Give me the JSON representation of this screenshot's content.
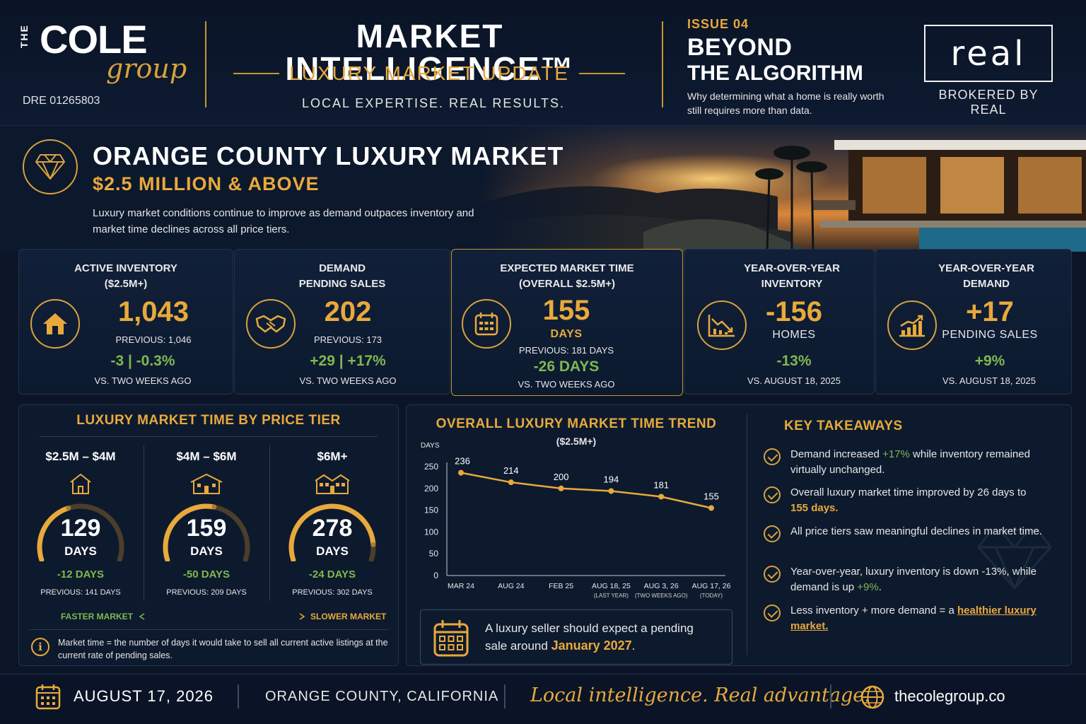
{
  "header": {
    "brand_the": "THE",
    "brand_cole": "COLE",
    "brand_group": "group",
    "dre": "DRE 01265803",
    "title": "MARKET INTELLIGENCE™",
    "subtitle": "LUXURY MARKET UPDATE",
    "tagline": "LOCAL EXPERTISE. REAL RESULTS.",
    "issue": "ISSUE 04",
    "headline_line1": "BEYOND",
    "headline_line2": "THE ALGORITHM",
    "headline_desc": "Why determining what a home is really worth still requires more than data.",
    "real_logo": "real",
    "brokered": "BROKERED BY REAL"
  },
  "hero": {
    "title": "ORANGE COUNTY LUXURY MARKET",
    "subtitle": "$2.5 MILLION & ABOVE",
    "description": "Luxury market conditions continue to improve as demand outpaces inventory and market time declines across all price tiers."
  },
  "cards": [
    {
      "title1": "ACTIVE INVENTORY",
      "title2": "($2.5M+)",
      "icon": "house-icon",
      "value": "1,043",
      "previous": "PREVIOUS: 1,046",
      "change": "-3  |  -0.3%",
      "compare": "VS. TWO WEEKS AGO"
    },
    {
      "title1": "DEMAND",
      "title2": "PENDING SALES",
      "icon": "handshake-icon",
      "value": "202",
      "previous": "PREVIOUS: 173",
      "change": "+29  |  +17%",
      "compare": "VS. TWO WEEKS AGO"
    },
    {
      "title1": "EXPECTED MARKET TIME",
      "title2": "(OVERALL $2.5M+)",
      "icon": "calendar-icon",
      "value": "155",
      "unit": "DAYS",
      "previous": "PREVIOUS: 181 DAYS",
      "change": "-26 DAYS",
      "compare": "VS. TWO WEEKS AGO"
    },
    {
      "title1": "YEAR-OVER-YEAR",
      "title2": "INVENTORY",
      "icon": "chart-down-icon",
      "value": "-156",
      "unit": "HOMES",
      "change": "-13%",
      "compare": "VS. AUGUST 18, 2025"
    },
    {
      "title1": "YEAR-OVER-YEAR",
      "title2": "DEMAND",
      "icon": "chart-up-icon",
      "value": "+17",
      "unit": "PENDING SALES",
      "change": "+9%",
      "compare": "VS. AUGUST 18, 2025"
    }
  ],
  "tiers": {
    "title": "LUXURY MARKET TIME BY PRICE TIER",
    "items": [
      {
        "range": "$2.5M – $4M",
        "days": "129",
        "unit": "DAYS",
        "change": "-12 DAYS",
        "previous": "PREVIOUS: 141 DAYS",
        "gauge": 0.42
      },
      {
        "range": "$4M – $6M",
        "days": "159",
        "unit": "DAYS",
        "change": "-50 DAYS",
        "previous": "PREVIOUS: 209 DAYS",
        "gauge": 0.55
      },
      {
        "range": "$6M+",
        "days": "278",
        "unit": "DAYS",
        "change": "-24 DAYS",
        "previous": "PREVIOUS: 302 DAYS",
        "gauge": 0.9
      }
    ],
    "faster": "FASTER MARKET",
    "slower": "SLOWER MARKET",
    "note": "Market time = the number of days it would take to sell all current active listings at the current rate of pending sales."
  },
  "trend": {
    "title": "OVERALL LUXURY MARKET TIME TREND",
    "subtitle": "($2.5M+)",
    "expect_text": "A luxury seller should expect a pending sale around ",
    "expect_date": "January 2027",
    "expect_end": "."
  },
  "chart_data": {
    "type": "line",
    "title": "OVERALL LUXURY MARKET TIME TREND",
    "subtitle": "($2.5M+)",
    "ylabel": "DAYS",
    "ylim": [
      0,
      250
    ],
    "yticks": [
      0,
      50,
      100,
      150,
      200,
      250
    ],
    "categories": [
      "MAR 24",
      "AUG 24",
      "FEB 25",
      "AUG 18, 25",
      "AUG 3, 26",
      "AUG 17, 26"
    ],
    "category_notes": [
      "",
      "",
      "",
      "(LAST YEAR)",
      "(TWO WEEKS AGO)",
      "(TODAY)"
    ],
    "values": [
      236,
      214,
      200,
      194,
      181,
      155
    ],
    "color": "#e8a93c",
    "grid": false
  },
  "takeaways": {
    "title": "KEY TAKEAWAYS",
    "items": [
      {
        "a": "Demand increased ",
        "hl": "+17%",
        "b": " while inventory remained virtually unchanged.",
        "hl_class": "green"
      },
      {
        "a": "Overall luxury market time improved by 26 days to ",
        "hl": "155 days.",
        "b": "",
        "hl_class": "gold"
      },
      {
        "a": "All price tiers saw meaningful declines in market time.",
        "hl": "",
        "b": "",
        "hl_class": "gold"
      },
      {
        "a": "Year-over-year, luxury inventory is down -13%, while demand is up ",
        "hl": "+9%",
        "b": ".",
        "hl_class": "green"
      },
      {
        "a": "Less inventory + more demand = a ",
        "hl": "healthier luxury market.",
        "b": "",
        "hl_class": "gold"
      }
    ]
  },
  "footer": {
    "date": "AUGUST 17, 2026",
    "location": "ORANGE COUNTY, CALIFORNIA",
    "slogan": "Local intelligence. Real advantage.",
    "website": "thecolegroup.co"
  },
  "colors": {
    "background": "#0b1527",
    "gold": "#e8a93c",
    "green": "#7fb84e"
  }
}
